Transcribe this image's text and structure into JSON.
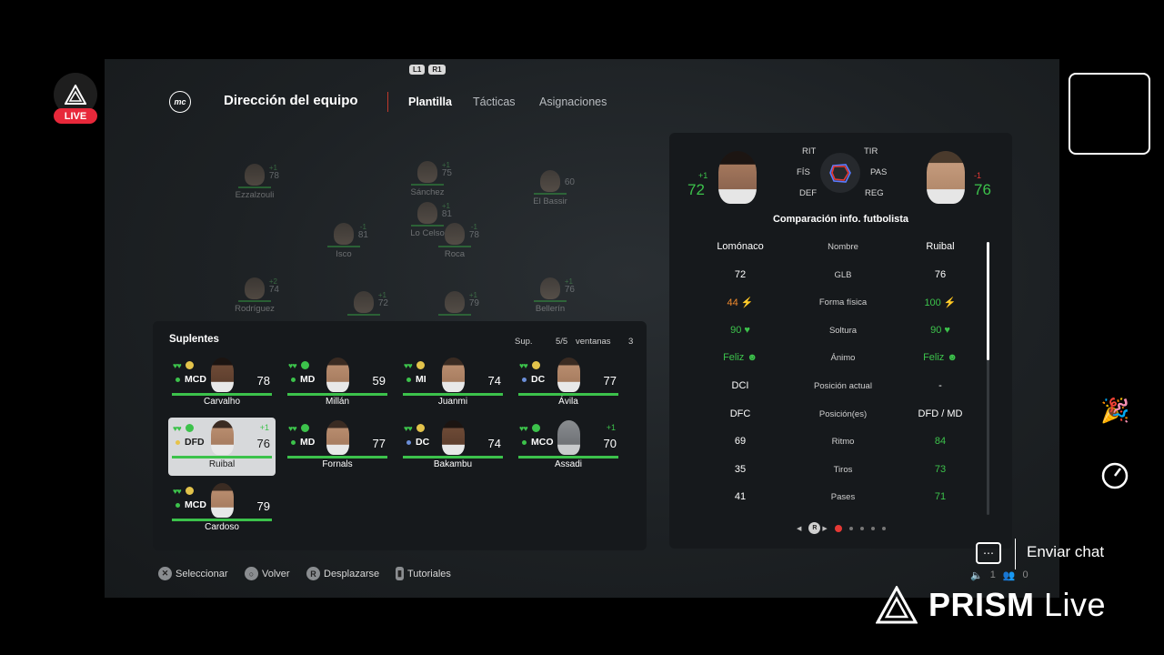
{
  "header": {
    "badges": [
      "L1",
      "R1"
    ],
    "logo": "mc",
    "title": "Dirección del equipo",
    "tabs": [
      {
        "label": "Plantilla",
        "active": true
      },
      {
        "label": "Tácticas",
        "active": false
      },
      {
        "label": "Asignaciones",
        "active": false
      }
    ]
  },
  "pitch": {
    "players": [
      {
        "name": "Ezzalzouli",
        "rating": "78",
        "mod": "+1"
      },
      {
        "name": "Sánchez",
        "rating": "75",
        "mod": "+1"
      },
      {
        "name": "El Bassir",
        "rating": "60",
        "mod": ""
      },
      {
        "name": "Lo Celso",
        "rating": "81",
        "mod": "+1"
      },
      {
        "name": "Isco",
        "rating": "81",
        "mod": "-1"
      },
      {
        "name": "Roca",
        "rating": "78",
        "mod": "-1"
      },
      {
        "name": "Rodríguez",
        "rating": "74",
        "mod": "+2"
      },
      {
        "name": "",
        "rating": "72",
        "mod": "+1"
      },
      {
        "name": "",
        "rating": "79",
        "mod": "+1"
      },
      {
        "name": "Bellerín",
        "rating": "76",
        "mod": "+1"
      }
    ]
  },
  "subs": {
    "title": "Suplentes",
    "sup_label": "Sup.",
    "count": "5/5",
    "ventanas_label": "ventanas",
    "ventanas_value": "3",
    "players": [
      {
        "name": "Carvalho",
        "pos": "MCD",
        "rating": "78",
        "plus": "",
        "mood": "yellow",
        "dot": "green",
        "face": "dark"
      },
      {
        "name": "Millán",
        "pos": "MD",
        "rating": "59",
        "plus": "",
        "mood": "green",
        "dot": "green",
        "face": "normal"
      },
      {
        "name": "Juanmi",
        "pos": "MI",
        "rating": "74",
        "plus": "",
        "mood": "yellow",
        "dot": "green",
        "face": "normal"
      },
      {
        "name": "Ávila",
        "pos": "DC",
        "rating": "77",
        "plus": "",
        "mood": "yellow",
        "dot": "blue",
        "face": "normal"
      },
      {
        "name": "Ruibal",
        "pos": "DFD",
        "rating": "76",
        "plus": "+1",
        "mood": "green",
        "dot": "yellow",
        "face": "normal",
        "selected": true
      },
      {
        "name": "Fornals",
        "pos": "MD",
        "rating": "77",
        "plus": "",
        "mood": "green",
        "dot": "green",
        "face": "normal"
      },
      {
        "name": "Bakambu",
        "pos": "DC",
        "rating": "74",
        "plus": "",
        "mood": "yellow",
        "dot": "blue",
        "face": "dark"
      },
      {
        "name": "Assadi",
        "pos": "MCO",
        "rating": "70",
        "plus": "+1",
        "mood": "green",
        "dot": "green",
        "face": "blank"
      },
      {
        "name": "Cardoso",
        "pos": "MCD",
        "rating": "79",
        "plus": "",
        "mood": "yellow",
        "dot": "green",
        "face": "normal"
      }
    ]
  },
  "comparison": {
    "left_rating": "72",
    "left_mod": "+1",
    "right_rating": "76",
    "right_mod": "-1",
    "attrs": [
      "RIT",
      "TIR",
      "FÍS",
      "PAS",
      "DEF",
      "REG"
    ],
    "title": "Comparación info. futbolista",
    "rows": [
      {
        "left": "Lomónaco",
        "label": "Nombre",
        "right": "Ruibal",
        "lc": "",
        "rc": ""
      },
      {
        "left": "72",
        "label": "GLB",
        "right": "76",
        "lc": "",
        "rc": ""
      },
      {
        "left": "44 ⚡",
        "label": "Forma física",
        "right": "100 ⚡",
        "lc": "orange",
        "rc": "green"
      },
      {
        "left": "90 ♥",
        "label": "Soltura",
        "right": "90 ♥",
        "lc": "green",
        "rc": "green"
      },
      {
        "left": "Feliz ☻",
        "label": "Ánimo",
        "right": "Feliz ☻",
        "lc": "green",
        "rc": "green"
      },
      {
        "left": "DCI",
        "label": "Posición actual",
        "right": "-",
        "lc": "",
        "rc": ""
      },
      {
        "left": "DFC",
        "label": "Posición(es)",
        "right": "DFD / MD",
        "lc": "",
        "rc": ""
      },
      {
        "left": "69",
        "label": "Ritmo",
        "right": "84",
        "lc": "",
        "rc": "green"
      },
      {
        "left": "35",
        "label": "Tiros",
        "right": "73",
        "lc": "",
        "rc": "green"
      },
      {
        "left": "41",
        "label": "Pases",
        "right": "71",
        "lc": "",
        "rc": "green"
      }
    ],
    "pager_button": "R"
  },
  "footer": {
    "hints": [
      {
        "icon": "✕",
        "label": "Seleccionar"
      },
      {
        "icon": "○",
        "label": "Volver"
      },
      {
        "icon": "R",
        "label": "Desplazarse"
      },
      {
        "icon": "▮",
        "label": "Tutoriales"
      }
    ]
  },
  "overlay": {
    "live_label": "LIVE",
    "chat_label": "Enviar chat",
    "viewers": "1",
    "followers": "0",
    "brand": "PRISM",
    "brand_suffix": " Live"
  },
  "colors": {
    "accent": "#3cc24b",
    "live": "#e8283a",
    "warning": "#f08a2e"
  }
}
